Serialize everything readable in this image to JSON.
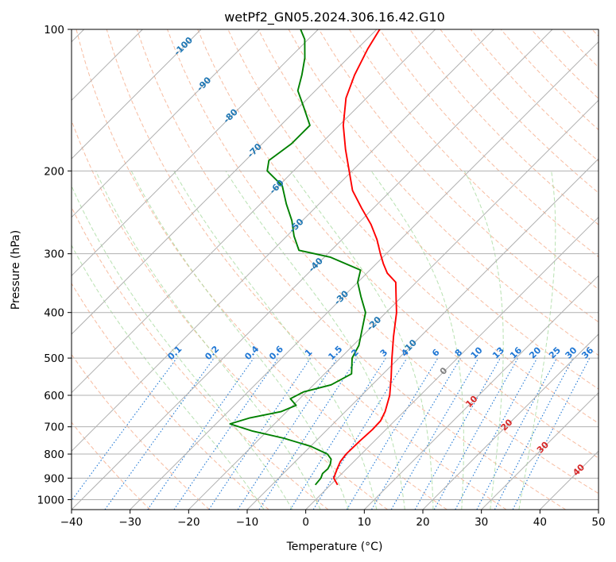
{
  "chart_data": {
    "type": "line",
    "title": "wetPf2_GN05.2024.306.16.42.G10",
    "xlabel": "Temperature (°C)",
    "ylabel": "Pressure (hPa)",
    "x_scale": "skew-T (45° skew)",
    "y_scale": "log (pressure, inverted)",
    "xlim": [
      -40,
      50
    ],
    "ylim": [
      1050,
      100
    ],
    "x_ticks": [
      "−40",
      "−30",
      "−20",
      "−10",
      "0",
      "10",
      "20",
      "30",
      "40",
      "50"
    ],
    "y_ticks": [
      "100",
      "200",
      "300",
      "400",
      "500",
      "600",
      "700",
      "800",
      "900",
      "1000"
    ],
    "grid": true,
    "series": [
      {
        "role": "temperature",
        "color": "#ff0000",
        "points": [
          {
            "p": 930,
            "t": 1.2
          },
          {
            "p": 900,
            "t": -0.6
          },
          {
            "p": 860,
            "t": -1.6
          },
          {
            "p": 830,
            "t": -2.3
          },
          {
            "p": 800,
            "t": -2.6
          },
          {
            "p": 750,
            "t": -2.5
          },
          {
            "p": 710,
            "t": -2.3
          },
          {
            "p": 680,
            "t": -2.4
          },
          {
            "p": 650,
            "t": -3.2
          },
          {
            "p": 600,
            "t": -5.2
          },
          {
            "p": 550,
            "t": -8.0
          },
          {
            "p": 500,
            "t": -11.2
          },
          {
            "p": 450,
            "t": -14.6
          },
          {
            "p": 400,
            "t": -18.2
          },
          {
            "p": 370,
            "t": -21.0
          },
          {
            "p": 345,
            "t": -23.5
          },
          {
            "p": 330,
            "t": -26.5
          },
          {
            "p": 315,
            "t": -28.8
          },
          {
            "p": 300,
            "t": -31.0
          },
          {
            "p": 280,
            "t": -34.0
          },
          {
            "p": 260,
            "t": -37.6
          },
          {
            "p": 240,
            "t": -42.0
          },
          {
            "p": 220,
            "t": -46.6
          },
          {
            "p": 200,
            "t": -50.5
          },
          {
            "p": 180,
            "t": -54.8
          },
          {
            "p": 160,
            "t": -59.3
          },
          {
            "p": 140,
            "t": -63.5
          },
          {
            "p": 125,
            "t": -66.0
          },
          {
            "p": 110,
            "t": -68.2
          },
          {
            "p": 100,
            "t": -69.5
          }
        ]
      },
      {
        "role": "dewpoint",
        "color": "#008000",
        "points": [
          {
            "p": 930,
            "t": -2.6
          },
          {
            "p": 900,
            "t": -2.8
          },
          {
            "p": 880,
            "t": -3.3
          },
          {
            "p": 860,
            "t": -3.2
          },
          {
            "p": 840,
            "t": -3.6
          },
          {
            "p": 820,
            "t": -4.3
          },
          {
            "p": 800,
            "t": -5.8
          },
          {
            "p": 770,
            "t": -10.0
          },
          {
            "p": 740,
            "t": -16.0
          },
          {
            "p": 715,
            "t": -22.5
          },
          {
            "p": 690,
            "t": -27.6
          },
          {
            "p": 670,
            "t": -25.2
          },
          {
            "p": 650,
            "t": -21.0
          },
          {
            "p": 630,
            "t": -19.5
          },
          {
            "p": 610,
            "t": -21.6
          },
          {
            "p": 590,
            "t": -20.5
          },
          {
            "p": 570,
            "t": -17.0
          },
          {
            "p": 540,
            "t": -15.4
          },
          {
            "p": 500,
            "t": -18.0
          },
          {
            "p": 470,
            "t": -19.0
          },
          {
            "p": 400,
            "t": -23.5
          },
          {
            "p": 370,
            "t": -27.0
          },
          {
            "p": 345,
            "t": -30.0
          },
          {
            "p": 325,
            "t": -31.6
          },
          {
            "p": 305,
            "t": -39.0
          },
          {
            "p": 295,
            "t": -45.5
          },
          {
            "p": 275,
            "t": -48.8
          },
          {
            "p": 255,
            "t": -51.8
          },
          {
            "p": 235,
            "t": -55.6
          },
          {
            "p": 215,
            "t": -59.4
          },
          {
            "p": 200,
            "t": -64.5
          },
          {
            "p": 190,
            "t": -66.0
          },
          {
            "p": 175,
            "t": -65.0
          },
          {
            "p": 160,
            "t": -65.0
          },
          {
            "p": 145,
            "t": -69.6
          },
          {
            "p": 135,
            "t": -73.0
          },
          {
            "p": 125,
            "t": -75.0
          },
          {
            "p": 115,
            "t": -77.4
          },
          {
            "p": 105,
            "t": -80.6
          },
          {
            "p": 100,
            "t": -83.0
          }
        ]
      }
    ],
    "mixing_ratio_labels": [
      "0.1",
      "0.2",
      "0.4",
      "0.6",
      "1",
      "1.5",
      "2",
      "3",
      "4",
      "6",
      "8",
      "10",
      "13",
      "16",
      "20",
      "25",
      "30",
      "36"
    ],
    "isotherm_labels_blue": [
      "-100",
      "-90",
      "-80",
      "-70",
      "-60",
      "-50",
      "-40",
      "-30",
      "-20",
      "-10"
    ],
    "isotherm_labels_gray": [
      "0"
    ],
    "isotherm_labels_red": [
      "10",
      "20",
      "30",
      "40"
    ],
    "colors": {
      "grid": "#b0b0b0",
      "dry_adiabat": "#f4a582",
      "moist_adiabat": "#a6d99e",
      "mixing_ratio": "#1f77d4",
      "label_blue": "#1f77b4",
      "label_red": "#d62728",
      "label_gray": "#808080"
    }
  }
}
